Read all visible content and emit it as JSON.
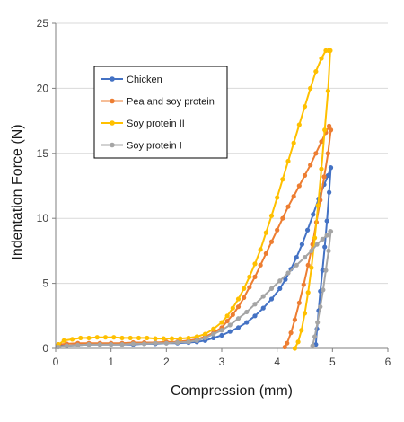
{
  "chart_data": {
    "type": "line",
    "xlabel": "Compression (mm)",
    "ylabel": "Indentation Force (N)",
    "xlim": [
      0,
      6
    ],
    "ylim": [
      0,
      25
    ],
    "xticks": [
      0,
      1,
      2,
      3,
      4,
      5,
      6
    ],
    "yticks": [
      0,
      5,
      10,
      15,
      20,
      25
    ],
    "grid": "horizontal",
    "legend_position": "upper-left",
    "series": [
      {
        "name": "Chicken",
        "color": "#4472C4",
        "x": [
          0.05,
          0.2,
          0.4,
          0.6,
          0.8,
          1.0,
          1.2,
          1.4,
          1.6,
          1.8,
          2.0,
          2.2,
          2.4,
          2.55,
          2.7,
          2.85,
          3.0,
          3.15,
          3.3,
          3.45,
          3.6,
          3.75,
          3.9,
          4.05,
          4.15,
          4.25,
          4.35,
          4.45,
          4.55,
          4.65,
          4.75,
          4.85,
          4.92,
          4.97,
          4.97,
          4.94,
          4.9,
          4.86,
          4.82,
          4.78,
          4.75,
          4.72,
          4.7
        ],
        "y": [
          0.2,
          0.2,
          0.25,
          0.3,
          0.3,
          0.3,
          0.3,
          0.3,
          0.35,
          0.35,
          0.4,
          0.4,
          0.45,
          0.5,
          0.6,
          0.8,
          1.0,
          1.3,
          1.6,
          2.0,
          2.5,
          3.1,
          3.8,
          4.6,
          5.3,
          6.1,
          7.0,
          8.0,
          9.1,
          10.3,
          11.5,
          12.6,
          13.3,
          13.9,
          13.9,
          12.0,
          9.8,
          7.8,
          6.0,
          4.4,
          2.9,
          1.5,
          0.3
        ]
      },
      {
        "name": "Pea and soy protein",
        "color": "#ED7D31",
        "x": [
          0.05,
          0.2,
          0.4,
          0.6,
          0.8,
          1.0,
          1.2,
          1.4,
          1.6,
          1.8,
          2.0,
          2.2,
          2.4,
          2.55,
          2.7,
          2.85,
          3.0,
          3.1,
          3.2,
          3.3,
          3.4,
          3.5,
          3.6,
          3.7,
          3.8,
          3.9,
          4.0,
          4.1,
          4.2,
          4.3,
          4.4,
          4.5,
          4.6,
          4.7,
          4.8,
          4.88,
          4.94,
          4.97,
          4.97,
          4.92,
          4.85,
          4.78,
          4.71,
          4.64,
          4.56,
          4.48,
          4.4,
          4.32,
          4.25,
          4.18,
          4.14
        ],
        "y": [
          0.3,
          0.35,
          0.4,
          0.4,
          0.4,
          0.4,
          0.4,
          0.45,
          0.45,
          0.45,
          0.5,
          0.5,
          0.6,
          0.7,
          0.9,
          1.2,
          1.6,
          2.1,
          2.6,
          3.2,
          3.9,
          4.7,
          5.5,
          6.4,
          7.3,
          8.2,
          9.1,
          10.0,
          10.9,
          11.7,
          12.5,
          13.3,
          14.1,
          15.0,
          15.9,
          16.6,
          17.1,
          16.8,
          16.8,
          15.0,
          13.2,
          11.4,
          9.7,
          8.0,
          6.4,
          4.9,
          3.5,
          2.2,
          1.2,
          0.4,
          0.1
        ]
      },
      {
        "name": "Soy protein II",
        "color": "#FFC000",
        "x": [
          0.05,
          0.15,
          0.3,
          0.45,
          0.6,
          0.75,
          0.9,
          1.05,
          1.2,
          1.35,
          1.5,
          1.65,
          1.8,
          1.95,
          2.1,
          2.25,
          2.4,
          2.55,
          2.7,
          2.85,
          3.0,
          3.1,
          3.2,
          3.3,
          3.4,
          3.5,
          3.6,
          3.7,
          3.8,
          3.9,
          4.0,
          4.1,
          4.2,
          4.3,
          4.4,
          4.5,
          4.6,
          4.7,
          4.8,
          4.88,
          4.93,
          4.96,
          4.96,
          4.92,
          4.86,
          4.8,
          4.74,
          4.68,
          4.62,
          4.56,
          4.5,
          4.44,
          4.38,
          4.32
        ],
        "y": [
          0.3,
          0.6,
          0.7,
          0.8,
          0.8,
          0.85,
          0.85,
          0.85,
          0.8,
          0.8,
          0.8,
          0.8,
          0.75,
          0.75,
          0.75,
          0.75,
          0.8,
          0.9,
          1.1,
          1.5,
          2.0,
          2.5,
          3.1,
          3.8,
          4.6,
          5.5,
          6.5,
          7.6,
          8.9,
          10.2,
          11.6,
          13.0,
          14.4,
          15.8,
          17.2,
          18.6,
          20.0,
          21.3,
          22.3,
          22.9,
          22.9,
          22.9,
          22.9,
          19.8,
          16.8,
          13.8,
          11.0,
          8.5,
          6.2,
          4.3,
          2.7,
          1.4,
          0.5,
          0.0
        ]
      },
      {
        "name": "Soy protein I",
        "color": "#A5A5A5",
        "x": [
          0.05,
          0.2,
          0.4,
          0.6,
          0.8,
          1.0,
          1.2,
          1.4,
          1.6,
          1.8,
          2.0,
          2.2,
          2.4,
          2.55,
          2.7,
          2.85,
          3.0,
          3.15,
          3.3,
          3.45,
          3.6,
          3.75,
          3.9,
          4.05,
          4.2,
          4.35,
          4.5,
          4.62,
          4.72,
          4.82,
          4.9,
          4.96,
          4.97,
          4.93,
          4.88,
          4.83,
          4.78,
          4.73,
          4.68,
          4.64
        ],
        "y": [
          0.1,
          0.2,
          0.25,
          0.3,
          0.3,
          0.3,
          0.3,
          0.35,
          0.35,
          0.4,
          0.4,
          0.45,
          0.5,
          0.6,
          0.8,
          1.1,
          1.4,
          1.8,
          2.3,
          2.8,
          3.4,
          4.0,
          4.6,
          5.2,
          5.8,
          6.4,
          7.0,
          7.5,
          8.0,
          8.4,
          8.7,
          9.0,
          9.0,
          7.5,
          6.0,
          4.5,
          3.2,
          2.0,
          0.9,
          0.2
        ]
      }
    ]
  }
}
